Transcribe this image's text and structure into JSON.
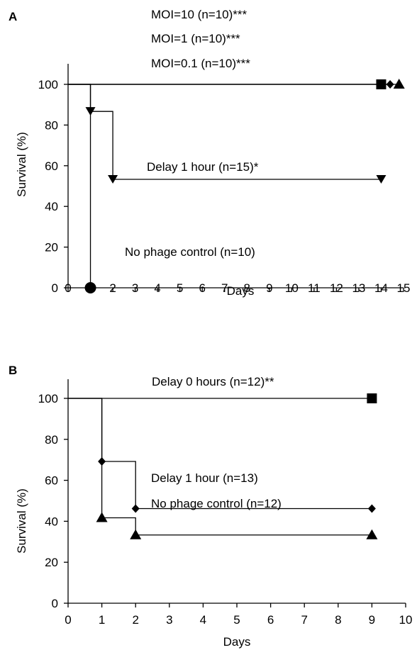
{
  "chart_data": [
    {
      "type": "line",
      "panel_label": "A",
      "xlabel": "Days",
      "ylabel": "Survival (%)",
      "xlim": [
        0,
        15
      ],
      "ylim": [
        0,
        100
      ],
      "xticks": [
        "0",
        "1",
        "2",
        "3",
        "4",
        "5",
        "6",
        "7",
        "8",
        "9",
        "10",
        "11",
        "12",
        "13",
        "14",
        "15"
      ],
      "yticks": [
        "0",
        "20",
        "40",
        "60",
        "80",
        "100"
      ],
      "grid": false,
      "step": true,
      "series": [
        {
          "name": "MOI=10 (n=10)***",
          "marker": "square",
          "x": [
            0,
            14
          ],
          "y": [
            100,
            100
          ],
          "marker_at": [
            [
              14,
              100
            ]
          ]
        },
        {
          "name": "MOI=1 (n=10)***",
          "marker": "diamond",
          "x": [
            0,
            14.4
          ],
          "y": [
            100,
            100
          ],
          "marker_at": [
            [
              14.4,
              100
            ]
          ]
        },
        {
          "name": "MOI=0.1 (n=10)***",
          "marker": "triangle-up",
          "x": [
            0,
            14.8
          ],
          "y": [
            100,
            100
          ],
          "marker_at": [
            [
              14.8,
              100
            ]
          ]
        },
        {
          "name": "Delay 1 hour (n=15)*",
          "marker": "triangle-down",
          "x": [
            0,
            1,
            1,
            2,
            2,
            14
          ],
          "y": [
            100,
            100,
            86.7,
            86.7,
            53.3,
            53.3
          ],
          "marker_at": [
            [
              1,
              86.7
            ],
            [
              2,
              53.3
            ],
            [
              14,
              53.3
            ]
          ]
        },
        {
          "name": "No phage control (n=10)",
          "marker": "circle",
          "x": [
            0,
            1,
            1
          ],
          "y": [
            100,
            100,
            0
          ],
          "marker_at": [
            [
              1,
              0
            ]
          ]
        }
      ],
      "annotations": [
        "MOI=10 (n=10)***",
        "MOI=1 (n=10)***",
        "MOI=0.1 (n=10)***",
        "Delay 1 hour (n=15)*",
        "No phage control (n=10)"
      ]
    },
    {
      "type": "line",
      "panel_label": "B",
      "xlabel": "Days",
      "ylabel": "Survival (%)",
      "xlim": [
        0,
        10
      ],
      "ylim": [
        0,
        100
      ],
      "xticks": [
        "0",
        "1",
        "2",
        "3",
        "4",
        "5",
        "6",
        "7",
        "8",
        "9",
        "10"
      ],
      "yticks": [
        "0",
        "20",
        "40",
        "60",
        "80",
        "100"
      ],
      "grid": false,
      "step": true,
      "series": [
        {
          "name": "Delay 0 hours (n=12)**",
          "marker": "square",
          "x": [
            0,
            9
          ],
          "y": [
            100,
            100
          ],
          "marker_at": [
            [
              9,
              100
            ]
          ]
        },
        {
          "name": "Delay 1 hour (n=13)",
          "marker": "diamond",
          "x": [
            0,
            1,
            1,
            2,
            2,
            9
          ],
          "y": [
            100,
            100,
            69.2,
            69.2,
            46.2,
            46.2
          ],
          "marker_at": [
            [
              1,
              69.2
            ],
            [
              2,
              46.2
            ],
            [
              9,
              46.2
            ]
          ]
        },
        {
          "name": "No phage control (n=12)",
          "marker": "triangle-up",
          "x": [
            0,
            1,
            1,
            2,
            2,
            9
          ],
          "y": [
            100,
            100,
            41.7,
            41.7,
            33.3,
            33.3
          ],
          "marker_at": [
            [
              1,
              41.7
            ],
            [
              2,
              33.3
            ],
            [
              9,
              33.3
            ]
          ]
        }
      ],
      "annotations": [
        "Delay 0 hours (n=12)**",
        "Delay 1 hour (n=13)",
        "No phage control (n=12)"
      ]
    }
  ]
}
